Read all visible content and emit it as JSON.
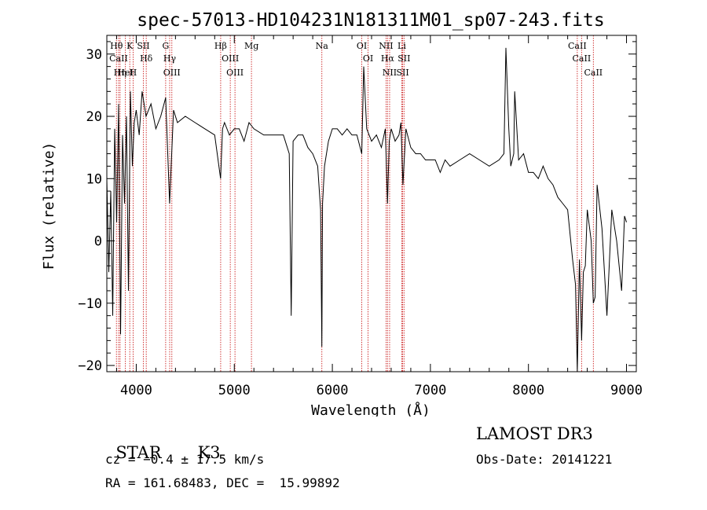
{
  "chart_data": {
    "type": "line",
    "title": "spec-57013-HD104231N181311M01_sp07-243.fits",
    "xlabel": "Wavelength (Å)",
    "ylabel": "Flux (relative)",
    "xlim": [
      3700,
      9100
    ],
    "ylim": [
      -21,
      33
    ],
    "xticks": [
      4000,
      5000,
      6000,
      7000,
      8000,
      9000
    ],
    "yticks": [
      -20,
      -10,
      0,
      10,
      20,
      30
    ],
    "grid": false,
    "series": [
      {
        "x": [
          3700,
          3720,
          3740,
          3760,
          3780,
          3800,
          3820,
          3840,
          3860,
          3880,
          3900,
          3920,
          3940,
          3960,
          3980,
          4000,
          4030,
          4060,
          4100,
          4150,
          4200,
          4250,
          4300,
          4340,
          4380,
          4420,
          4500,
          4600,
          4700,
          4800,
          4860,
          4880,
          4900,
          4950,
          5000,
          5050,
          5100,
          5150,
          5200,
          5300,
          5400,
          5500,
          5560,
          5580,
          5600,
          5650,
          5700,
          5750,
          5800,
          5850,
          5880,
          5893,
          5900,
          5920,
          5960,
          6000,
          6050,
          6100,
          6150,
          6200,
          6250,
          6300,
          6320,
          6350,
          6400,
          6450,
          6500,
          6540,
          6563,
          6580,
          6600,
          6640,
          6680,
          6700,
          6720,
          6750,
          6800,
          6850,
          6900,
          6950,
          7000,
          7050,
          7100,
          7150,
          7200,
          7300,
          7400,
          7500,
          7600,
          7700,
          7750,
          7770,
          7800,
          7820,
          7850,
          7860,
          7900,
          7950,
          8000,
          8050,
          8100,
          8150,
          8200,
          8250,
          8300,
          8350,
          8400,
          8450,
          8480,
          8498,
          8520,
          8542,
          8560,
          8580,
          8600,
          8640,
          8662,
          8680,
          8700,
          8750,
          8800,
          8850,
          8900,
          8950,
          8980,
          9000
        ],
        "y": [
          10,
          -5,
          8,
          -12,
          18,
          3,
          22,
          -15,
          17,
          6,
          20,
          -8,
          24,
          12,
          19,
          21,
          17,
          24,
          20,
          22,
          18,
          20,
          23,
          6,
          21,
          19,
          20,
          19,
          18,
          17,
          10,
          18,
          19,
          17,
          18,
          18,
          16,
          19,
          18,
          17,
          17,
          17,
          14,
          -12,
          16,
          17,
          17,
          15,
          14,
          12,
          5,
          -17,
          6,
          12,
          16,
          18,
          18,
          17,
          18,
          17,
          17,
          14,
          28,
          18,
          16,
          17,
          15,
          18,
          6,
          16,
          18,
          16,
          17,
          19,
          9,
          18,
          15,
          14,
          14,
          13,
          13,
          13,
          11,
          13,
          12,
          13,
          14,
          13,
          12,
          13,
          14,
          31,
          18,
          12,
          14,
          24,
          13,
          14,
          11,
          11,
          10,
          12,
          10,
          9,
          7,
          6,
          5,
          -3,
          -7,
          -21,
          -3,
          -16,
          -5,
          -4,
          5,
          0,
          -10,
          -9,
          9,
          2,
          -12,
          5,
          0,
          -8,
          4,
          3
        ]
      }
    ],
    "lines": [
      {
        "x": 3798,
        "label": "Hθ"
      },
      {
        "x": 3820,
        "label": "CaII"
      },
      {
        "x": 3835,
        "label": "Hη"
      },
      {
        "x": 3889,
        "label": "HeI"
      },
      {
        "x": 3934,
        "label": "K"
      },
      {
        "x": 3968,
        "label": "H"
      },
      {
        "x": 4072,
        "label": "SII"
      },
      {
        "x": 4102,
        "label": "Hδ"
      },
      {
        "x": 4300,
        "label": "G"
      },
      {
        "x": 4341,
        "label": "Hγ"
      },
      {
        "x": 4363,
        "label": "OIII"
      },
      {
        "x": 4861,
        "label": "Hβ"
      },
      {
        "x": 4959,
        "label": "OIII"
      },
      {
        "x": 5007,
        "label": "OIII"
      },
      {
        "x": 5175,
        "label": "Mg"
      },
      {
        "x": 5893,
        "label": "Na"
      },
      {
        "x": 6300,
        "label": "OI"
      },
      {
        "x": 6364,
        "label": "OI"
      },
      {
        "x": 6548,
        "label": "NII"
      },
      {
        "x": 6563,
        "label": "Hα"
      },
      {
        "x": 6584,
        "label": "NII"
      },
      {
        "x": 6708,
        "label": "Li"
      },
      {
        "x": 6717,
        "label": "SII"
      },
      {
        "x": 6731,
        "label": "SII"
      },
      {
        "x": 8498,
        "label": "CaII"
      },
      {
        "x": 8542,
        "label": "CaII"
      },
      {
        "x": 8662,
        "label": "CaII"
      }
    ]
  },
  "info": {
    "class_label": "STAR",
    "subclass": "K3",
    "survey": "LAMOST DR3",
    "redshift_line": "cz = −0.4 ± 17.5 km/s",
    "obs_date_line": "Obs-Date: 20141221",
    "coords_line": "RA = 161.68483, DEC =  15.99892"
  },
  "colors": {
    "spectrum": "#000000",
    "line_markers": "#cc2222",
    "axes": "#000000"
  }
}
